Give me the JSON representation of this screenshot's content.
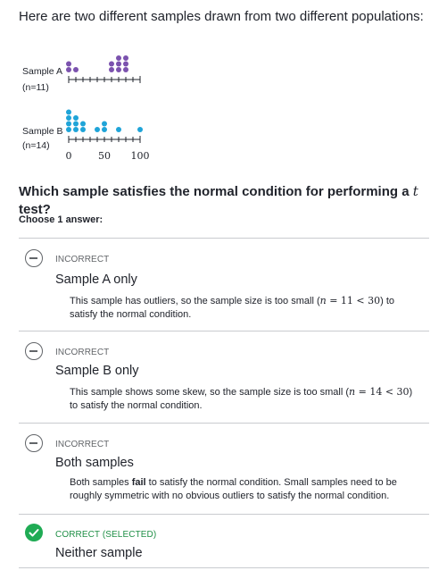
{
  "intro": "Here are two different samples drawn from two different populations:",
  "figure": {
    "sample_a": {
      "name": "Sample A",
      "n_label": "(n=11)",
      "color": "#7b52ae",
      "values": [
        0,
        0,
        10,
        60,
        60,
        70,
        70,
        70,
        80,
        80,
        80
      ]
    },
    "sample_b": {
      "name": "Sample B",
      "n_label": "(n=14)",
      "color": "#1fa4d8",
      "values": [
        0,
        0,
        0,
        0,
        10,
        10,
        10,
        20,
        20,
        40,
        50,
        50,
        70,
        100
      ]
    },
    "axis_ticks": [
      "0",
      "50",
      "100"
    ],
    "axis_range": [
      0,
      100
    ],
    "tick_step": 10
  },
  "question": {
    "prefix": "Which sample satisfies the normal condition for performing a ",
    "var": "t",
    "suffix": " test?"
  },
  "choose_label": "Choose 1 answer:",
  "choices": [
    {
      "status": "INCORRECT",
      "label": "Sample A only",
      "rationale_a": "This sample has outliers, so the sample size is too small (",
      "math_n": "n",
      "math_rel": " = 11 < 30",
      "rationale_b": ") to satisfy the normal condition."
    },
    {
      "status": "INCORRECT",
      "label": "Sample B only",
      "rationale_a": "This sample shows some skew, so the sample size is too small (",
      "math_n": "n",
      "math_rel": " = 14 < 30",
      "rationale_b": ") to satisfy the normal condition."
    },
    {
      "status": "INCORRECT",
      "label": "Both samples",
      "rationale_a": "Both samples ",
      "emph": "fail",
      "rationale_b": " to satisfy the normal condition. Small samples need to be roughly symmetric with no obvious outliers to satisfy the normal condition."
    },
    {
      "status": "CORRECT (SELECTED)",
      "label": "Neither sample"
    }
  ],
  "colors": {
    "correct": "#1fab54",
    "rule": "#c9cbcf"
  }
}
